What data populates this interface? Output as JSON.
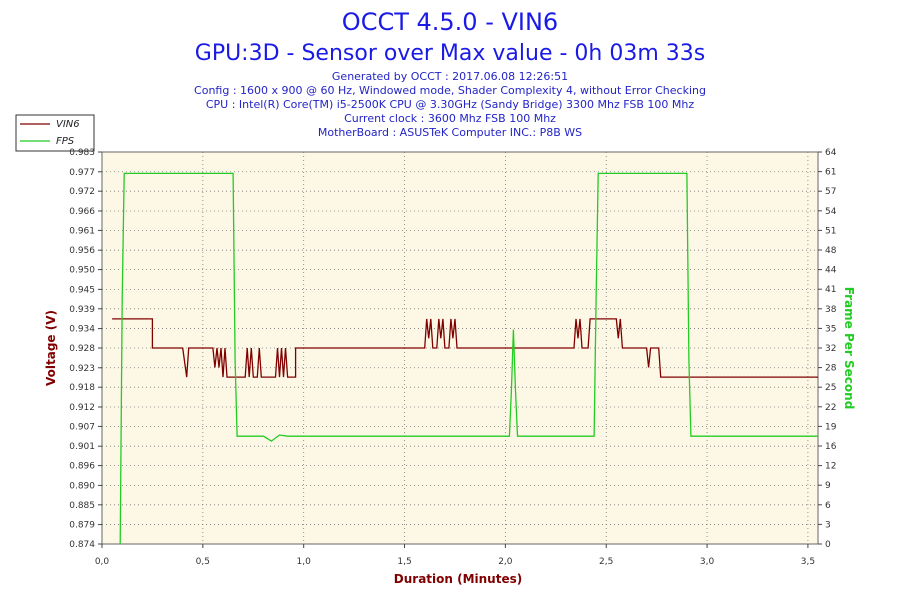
{
  "chart_data": {
    "type": "line",
    "title": "OCCT 4.5.0 - VIN6",
    "subtitle": "GPU:3D - Sensor over Max value - 0h 03m 33s",
    "info_lines": [
      "Generated by OCCT : 2017.06.08 12:26:51",
      "Config : 1600 x 900 @ 60 Hz, Windowed mode, Shader Complexity 4, without Error Checking",
      "CPU : Intel(R) Core(TM) i5-2500K CPU @ 3.30GHz (Sandy Bridge) 3300 Mhz FSB 100 Mhz",
      "Current clock : 3600 Mhz FSB 100 Mhz",
      "MotherBoard : ASUSTeK Computer INC.: P8B WS"
    ],
    "xlabel": "Duration (Minutes)",
    "ylabel": "Voltage (V)",
    "y2label": "Frame Per Second",
    "xlim": [
      0,
      3.55
    ],
    "ylim": [
      0.874,
      0.983
    ],
    "y2lim": [
      0,
      64
    ],
    "x_ticks": [
      "0,0",
      "0,5",
      "1,0",
      "1,5",
      "2,0",
      "2,5",
      "3,0",
      "3,5"
    ],
    "x_tick_values": [
      0,
      0.5,
      1.0,
      1.5,
      2.0,
      2.5,
      3.0,
      3.5
    ],
    "y_ticks": [
      "0.874",
      "0.879",
      "0.885",
      "0.890",
      "0.896",
      "0.901",
      "0.907",
      "0.912",
      "0.918",
      "0.923",
      "0.928",
      "0.934",
      "0.939",
      "0.945",
      "0.950",
      "0.956",
      "0.961",
      "0.966",
      "0.972",
      "0.977",
      "0.983"
    ],
    "y_tick_values": [
      0.874,
      0.8794,
      0.8849,
      0.8903,
      0.8958,
      0.9012,
      0.9067,
      0.9121,
      0.9176,
      0.923,
      0.9285,
      0.9339,
      0.9394,
      0.9448,
      0.9503,
      0.9557,
      0.9612,
      0.9666,
      0.9721,
      0.9775,
      0.983
    ],
    "y2_ticks": [
      "0",
      "3",
      "6",
      "9",
      "12",
      "16",
      "19",
      "22",
      "25",
      "28",
      "32",
      "35",
      "38",
      "41",
      "44",
      "48",
      "51",
      "54",
      "57",
      "61",
      "64"
    ],
    "y2_tick_values": [
      0,
      3.2,
      6.4,
      9.6,
      12.8,
      16,
      19.2,
      22.4,
      25.6,
      28.8,
      32,
      35.2,
      38.4,
      41.6,
      44.8,
      48,
      51.2,
      54.4,
      57.6,
      60.8,
      64
    ],
    "grid": true,
    "legend_position": "top-left",
    "series": [
      {
        "name": "VIN6",
        "axis": "left",
        "color": "#800000",
        "x": [
          0.05,
          0.25,
          0.25,
          0.4,
          0.42,
          0.43,
          0.45,
          0.55,
          0.56,
          0.57,
          0.58,
          0.59,
          0.6,
          0.61,
          0.62,
          0.63,
          0.65,
          0.71,
          0.72,
          0.73,
          0.74,
          0.75,
          0.77,
          0.78,
          0.79,
          0.8,
          0.86,
          0.87,
          0.88,
          0.89,
          0.9,
          0.91,
          0.92,
          0.96,
          0.96,
          1.6,
          1.61,
          1.62,
          1.63,
          1.64,
          1.66,
          1.67,
          1.68,
          1.69,
          1.7,
          1.72,
          1.73,
          1.74,
          1.75,
          1.76,
          1.78,
          2.34,
          2.35,
          2.36,
          2.37,
          2.38,
          2.41,
          2.42,
          2.42,
          2.55,
          2.56,
          2.57,
          2.58,
          2.6,
          2.7,
          2.71,
          2.72,
          2.76,
          2.77,
          2.77,
          3.55
        ],
        "values": [
          0.9366,
          0.9366,
          0.9285,
          0.9285,
          0.9204,
          0.9285,
          0.9285,
          0.9285,
          0.9231,
          0.9285,
          0.9231,
          0.9285,
          0.9204,
          0.9285,
          0.9204,
          0.9204,
          0.9204,
          0.9204,
          0.9285,
          0.9204,
          0.9285,
          0.9204,
          0.9204,
          0.9285,
          0.9204,
          0.9204,
          0.9204,
          0.9285,
          0.9204,
          0.9285,
          0.9204,
          0.9285,
          0.9204,
          0.9204,
          0.9285,
          0.9285,
          0.9366,
          0.9312,
          0.9366,
          0.9285,
          0.9285,
          0.9366,
          0.9312,
          0.9366,
          0.9285,
          0.9285,
          0.9366,
          0.9312,
          0.9366,
          0.9285,
          0.9285,
          0.9285,
          0.9366,
          0.9312,
          0.9366,
          0.9285,
          0.9285,
          0.9366,
          0.9366,
          0.9366,
          0.9312,
          0.9366,
          0.9285,
          0.9285,
          0.9285,
          0.9231,
          0.9285,
          0.9285,
          0.9204,
          0.9204,
          0.9204
        ]
      },
      {
        "name": "FPS",
        "axis": "right",
        "color": "#22cc22",
        "x": [
          0.09,
          0.1,
          0.11,
          0.65,
          0.66,
          0.67,
          0.8,
          0.84,
          0.88,
          0.92,
          0.96,
          1.2,
          1.4,
          1.6,
          1.8,
          1.9,
          2.02,
          2.03,
          2.04,
          2.05,
          2.06,
          2.07,
          2.44,
          2.45,
          2.46,
          2.47,
          2.9,
          2.91,
          2.92,
          3.1,
          3.3,
          3.55
        ],
        "values": [
          0,
          40,
          60.5,
          60.5,
          30,
          17.6,
          17.6,
          16.8,
          17.8,
          17.6,
          17.6,
          17.6,
          17.6,
          17.6,
          17.6,
          17.6,
          17.6,
          25,
          35,
          25,
          17.6,
          17.6,
          17.6,
          40,
          60.5,
          60.5,
          60.5,
          30,
          17.6,
          17.6,
          17.6,
          17.6
        ]
      }
    ]
  }
}
